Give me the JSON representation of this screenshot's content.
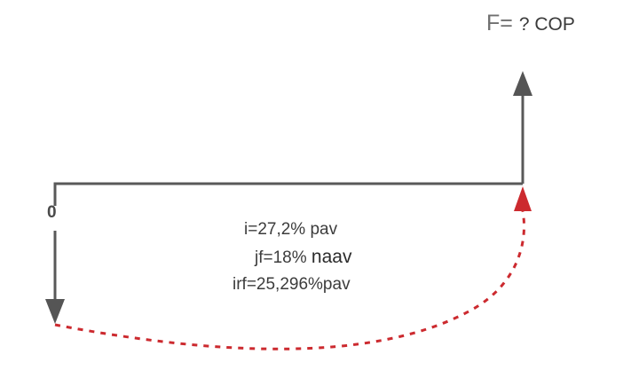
{
  "future_value": {
    "symbol": "F=",
    "value": "? COP"
  },
  "period_start": "0",
  "rates": {
    "i": "i=27,2% pav",
    "jf_value": "jf=18%",
    "jf_unit": "naav",
    "irf": "irf=25,296%pav"
  },
  "colors": {
    "line": "#595959",
    "arrow_up": "#555555",
    "arrow_down": "#555555",
    "equivalence_curve": "#cc2a2f"
  }
}
